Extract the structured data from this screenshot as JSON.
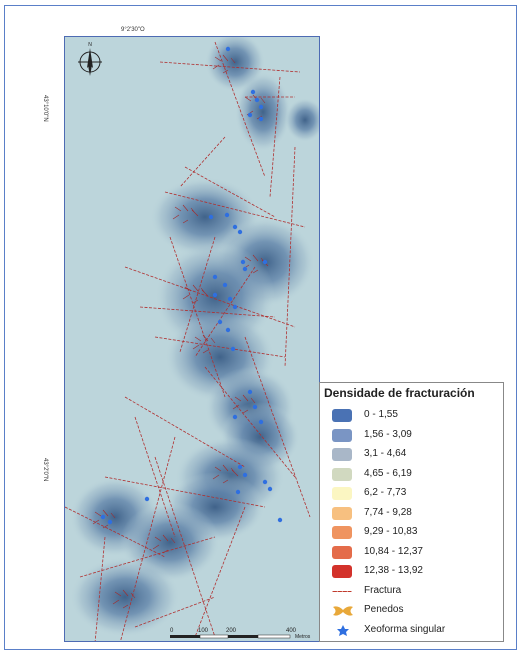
{
  "coords": {
    "top_longitude": "9°2'30\"O",
    "left_latitude_top": "43°10'0\"N",
    "left_latitude_bottom": "43°2'0\"N"
  },
  "north_arrow": {
    "label": "N",
    "icon": "north-arrow-icon"
  },
  "legend": {
    "title": "Densidade de fracturación",
    "items": [
      {
        "label": "0 - 1,55",
        "color": "#4a72b4",
        "icon": "swatch"
      },
      {
        "label": "1,56 - 3,09",
        "color": "#7a95c4",
        "icon": "swatch"
      },
      {
        "label": "3,1 - 4,64",
        "color": "#a9b7c8",
        "icon": "swatch"
      },
      {
        "label": "4,65 - 6,19",
        "color": "#d1d9c0",
        "icon": "swatch"
      },
      {
        "label": "6,2 - 7,73",
        "color": "#fbf6c2",
        "icon": "swatch"
      },
      {
        "label": "7,74 - 9,28",
        "color": "#f7c080",
        "icon": "swatch"
      },
      {
        "label": "9,29 - 10,83",
        "color": "#ef9460",
        "icon": "swatch"
      },
      {
        "label": "10,84 - 12,37",
        "color": "#e46c4a",
        "icon": "swatch"
      },
      {
        "label": "12,38 - 13,92",
        "color": "#d3322b",
        "icon": "swatch"
      },
      {
        "label": "Fractura",
        "color": "#c0392b",
        "icon": "dashed-line"
      },
      {
        "label": "Penedos",
        "color": "#e8a83a",
        "icon": "penedos-icon"
      },
      {
        "label": "Xeoforma singular",
        "color": "#2f6fe0",
        "icon": "star-icon"
      }
    ]
  },
  "scale": {
    "ticks": [
      "0",
      "100",
      "200",
      "400"
    ],
    "unit": "Metros"
  },
  "colors": {
    "background": "#bcd5db",
    "density_low": "#6f8fb5",
    "density_high": "#3e6a96",
    "fracture": "#b03030",
    "xeoforma": "#2f6fe0"
  }
}
